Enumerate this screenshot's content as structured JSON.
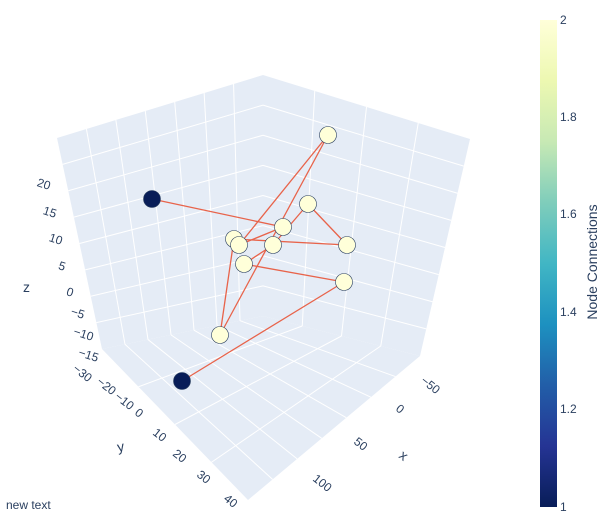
{
  "chart_data": {
    "type": "scatter3d",
    "scene": {
      "xaxis": {
        "title": "x",
        "ticks": [
          "−50",
          "0",
          "50",
          "100"
        ]
      },
      "yaxis": {
        "title": "y",
        "ticks": [
          "−30",
          "−20",
          "−10",
          "0",
          "10",
          "20",
          "30",
          "40"
        ]
      },
      "zaxis": {
        "title": "z",
        "ticks": [
          "−15",
          "−10",
          "−5",
          "0",
          "5",
          "10",
          "15",
          "20"
        ]
      },
      "background": "#e5ecf6",
      "grid": true
    },
    "nodes": [
      {
        "id": "A",
        "connections": 1
      },
      {
        "id": "B",
        "connections": 1
      },
      {
        "id": "C",
        "connections": 2
      },
      {
        "id": "D",
        "connections": 2
      },
      {
        "id": "E",
        "connections": 2
      },
      {
        "id": "F",
        "connections": 2
      },
      {
        "id": "G",
        "connections": 2
      },
      {
        "id": "H",
        "connections": 2
      },
      {
        "id": "I",
        "connections": 2
      },
      {
        "id": "J",
        "connections": 2
      },
      {
        "id": "K",
        "connections": 2
      },
      {
        "id": "L",
        "connections": 2
      }
    ],
    "edges": [
      [
        "A",
        "G"
      ],
      [
        "G",
        "L"
      ],
      [
        "L",
        "C"
      ],
      [
        "C",
        "I"
      ],
      [
        "I",
        "H"
      ],
      [
        "H",
        "F"
      ],
      [
        "F",
        "E"
      ],
      [
        "E",
        "J"
      ],
      [
        "J",
        "K"
      ],
      [
        "K",
        "D"
      ],
      [
        "D",
        "B"
      ]
    ],
    "colorbar": {
      "title": "Node Connections",
      "min": 1,
      "max": 2,
      "ticks": [
        "1",
        "1.2",
        "1.4",
        "1.6",
        "1.8",
        "2"
      ],
      "colorscale": [
        "#081d58",
        "#253494",
        "#225ea8",
        "#1d91c0",
        "#41b6c4",
        "#7fcdbb",
        "#c7e9b4",
        "#edf8b1",
        "#ffffd9"
      ]
    },
    "edge_color": "#e8634a",
    "marker_border": "#2a3f5f"
  },
  "annotation": "new text"
}
